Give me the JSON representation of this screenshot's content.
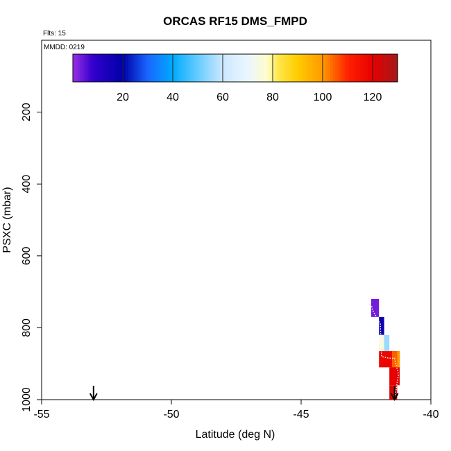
{
  "chart_data": {
    "type": "heatmap",
    "title": "ORCAS RF15 DMS_FMPD",
    "flights_label": "Flts: 15",
    "date_label": "MMDD: 0219",
    "xlabel": "Latitude (deg N)",
    "ylabel": "PSXC (mbar)",
    "xlim": [
      -55,
      -40
    ],
    "ylim": [
      1000,
      0
    ],
    "x_ticks": [
      -55,
      -50,
      -45,
      -40
    ],
    "y_ticks": [
      200,
      400,
      600,
      800,
      1000
    ],
    "colorbar": {
      "range": [
        0,
        130
      ],
      "ticks": [
        20,
        40,
        60,
        80,
        100,
        120
      ],
      "stops": [
        {
          "v": 0,
          "color": "#9a2fe6"
        },
        {
          "v": 8,
          "color": "#3300cc"
        },
        {
          "v": 20,
          "color": "#0000a8"
        },
        {
          "v": 30,
          "color": "#1a66ff"
        },
        {
          "v": 40,
          "color": "#00aaff"
        },
        {
          "v": 50,
          "color": "#66ccff"
        },
        {
          "v": 60,
          "color": "#cce8ff"
        },
        {
          "v": 70,
          "color": "#eaf6ff"
        },
        {
          "v": 78,
          "color": "#fffccc"
        },
        {
          "v": 82,
          "color": "#ffe84d"
        },
        {
          "v": 90,
          "color": "#ffcc00"
        },
        {
          "v": 100,
          "color": "#ff9900"
        },
        {
          "v": 110,
          "color": "#ff2200"
        },
        {
          "v": 120,
          "color": "#e60000"
        },
        {
          "v": 130,
          "color": "#a31a1a"
        }
      ]
    },
    "cells": [
      {
        "lat0": -42.3,
        "lat1": -42.0,
        "p0": 720,
        "p1": 770,
        "value": 3
      },
      {
        "lat0": -42.0,
        "lat1": -41.8,
        "p0": 770,
        "p1": 820,
        "value": 18
      },
      {
        "lat0": -42.0,
        "lat1": -41.8,
        "p0": 820,
        "p1": 865,
        "value": 75
      },
      {
        "lat0": -41.8,
        "lat1": -41.6,
        "p0": 820,
        "p1": 865,
        "value": 55
      },
      {
        "lat0": -42.0,
        "lat1": -41.2,
        "p0": 865,
        "p1": 910,
        "value": 118
      },
      {
        "lat0": -41.5,
        "lat1": -41.2,
        "p0": 865,
        "p1": 910,
        "value": 105
      },
      {
        "lat0": -41.3,
        "lat1": -41.2,
        "p0": 865,
        "p1": 910,
        "value": 100
      },
      {
        "lat0": -41.6,
        "lat1": -41.2,
        "p0": 910,
        "p1": 960,
        "value": 120
      },
      {
        "lat0": -41.6,
        "lat1": -41.3,
        "p0": 960,
        "p1": 1000,
        "value": 122
      }
    ],
    "track": [
      {
        "lat": -42.28,
        "p": 740
      },
      {
        "lat": -42.25,
        "p": 750
      },
      {
        "lat": -41.95,
        "p": 790
      },
      {
        "lat": -41.9,
        "p": 880
      },
      {
        "lat": -41.6,
        "p": 885
      },
      {
        "lat": -41.4,
        "p": 885
      },
      {
        "lat": -41.25,
        "p": 930
      },
      {
        "lat": -41.4,
        "p": 1000
      }
    ],
    "arrows_lat": [
      -53.0,
      -41.4
    ]
  }
}
